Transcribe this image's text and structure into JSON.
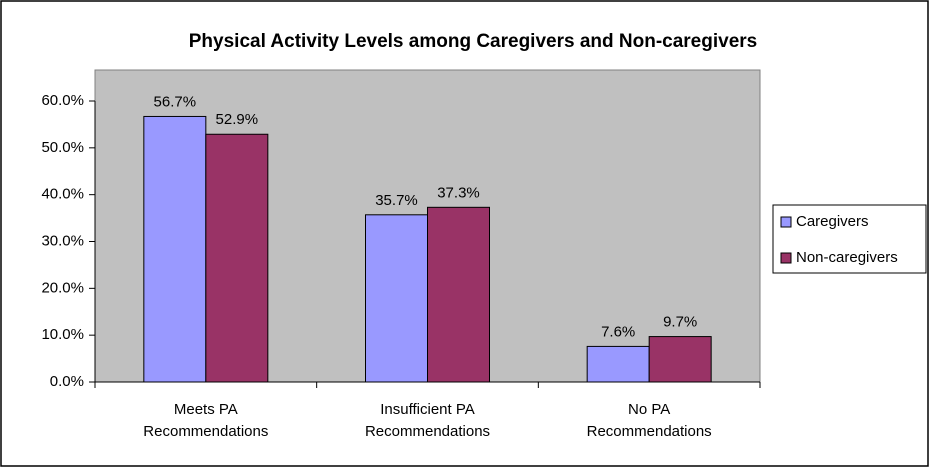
{
  "chart_data": {
    "type": "bar",
    "title": "Physical Activity Levels among Caregivers and Non-caregivers",
    "categories": [
      "Meets PA Recommendations",
      "Insufficient PA Recommendations",
      "No PA Recommendations"
    ],
    "series": [
      {
        "name": "Caregivers",
        "color": "#9999ff",
        "values": [
          56.7,
          35.7,
          7.6
        ],
        "value_labels": [
          "56.7%",
          "35.7%",
          "7.6%"
        ]
      },
      {
        "name": "Non-caregivers",
        "color": "#993366",
        "values": [
          52.9,
          37.3,
          9.7
        ],
        "value_labels": [
          "52.9%",
          "37.3%",
          "9.7%"
        ]
      }
    ],
    "ylim": [
      0,
      60
    ],
    "yticks": [
      {
        "value": 0,
        "label": "0.0%"
      },
      {
        "value": 10,
        "label": "10.0%"
      },
      {
        "value": 20,
        "label": "20.0%"
      },
      {
        "value": 30,
        "label": "30.0%"
      },
      {
        "value": 40,
        "label": "40.0%"
      },
      {
        "value": 50,
        "label": "50.0%"
      },
      {
        "value": 60,
        "label": "60.0%"
      }
    ],
    "legend": "right",
    "grid": false
  }
}
